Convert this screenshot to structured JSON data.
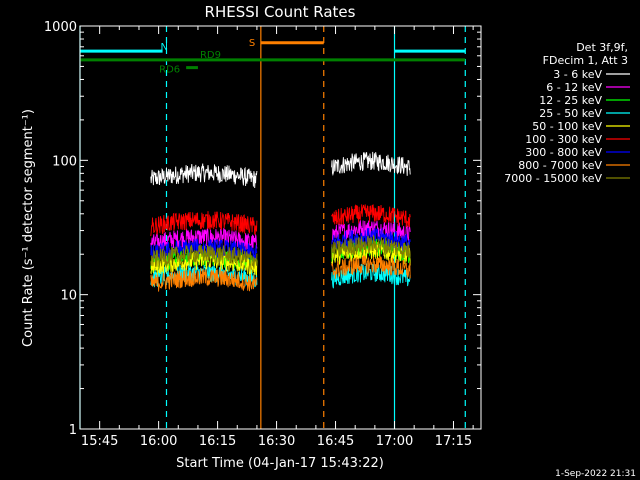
{
  "chart_data": {
    "type": "line",
    "title": "RHESSI Count Rates",
    "xlabel": "Start Time (04-Jan-17 15:43:22)",
    "ylabel": "Count Rate (s⁻¹ detector segment⁻¹)",
    "x_range": [
      "15:40",
      "17:22"
    ],
    "y_range": [
      1,
      1000
    ],
    "y_scale": "log",
    "x_ticks": [
      "15:45",
      "16:00",
      "16:15",
      "16:30",
      "16:45",
      "17:00",
      "17:15"
    ],
    "y_ticks": [
      1,
      10,
      100,
      1000
    ],
    "y_tick_labels": [
      "1",
      "10",
      "100",
      "1000"
    ],
    "legend_header": [
      "Det 3f,9f,",
      "FDecim 1, Att 3"
    ],
    "legend_position": "right",
    "intervals": [
      {
        "label": "",
        "color": "#00ffff",
        "y": 650,
        "start": "15:40",
        "end": "16:01"
      },
      {
        "label": "",
        "color": "#00ffff",
        "y": 650,
        "start": "17:00",
        "end": "17:18"
      },
      {
        "label": "N",
        "color": "#00ffff",
        "y": 650,
        "start": "16:02",
        "end": "16:02"
      },
      {
        "label": "",
        "color": "#008000",
        "y": 560,
        "start": "15:40",
        "end": "17:18"
      },
      {
        "label": "RD6",
        "color": "#008000",
        "y": 490,
        "start": "16:07",
        "end": "16:10"
      },
      {
        "label": "RD9",
        "color": "#008000",
        "y": 560,
        "start": "16:10",
        "end": "16:10"
      },
      {
        "label": "S",
        "color": "#ff8000",
        "y": 750,
        "start": "16:26",
        "end": "16:42"
      }
    ],
    "vertical_lines": [
      {
        "time": "15:40",
        "color": "#00ffff",
        "style": "solid"
      },
      {
        "time": "16:02",
        "color": "#00ffff",
        "style": "dashed"
      },
      {
        "time": "16:26",
        "color": "#ff8000",
        "style": "solid"
      },
      {
        "time": "16:42",
        "color": "#ff8000",
        "style": "dashed"
      },
      {
        "time": "17:00",
        "color": "#00ffff",
        "style": "solid"
      },
      {
        "time": "17:18",
        "color": "#00ffff",
        "style": "dashed"
      }
    ],
    "segments": [
      {
        "start": "15:58",
        "end": "16:25"
      },
      {
        "start": "16:44",
        "end": "17:04"
      }
    ],
    "series": [
      {
        "name": "3 - 6 keV",
        "color": "#ffffff",
        "levels": [
          72,
          88
        ]
      },
      {
        "name": "6 - 12 keV",
        "color": "#ff00ff",
        "levels": [
          24,
          28
        ]
      },
      {
        "name": "12 - 25 keV",
        "color": "#00ff00",
        "levels": [
          17,
          20
        ]
      },
      {
        "name": "25 - 50 keV",
        "color": "#00ffff",
        "levels": [
          13,
          13
        ]
      },
      {
        "name": "50 - 100 keV",
        "color": "#ffff00",
        "levels": [
          16,
          19
        ]
      },
      {
        "name": "100 - 300 keV",
        "color": "#ff0000",
        "levels": [
          32,
          36
        ]
      },
      {
        "name": "300 - 800 keV",
        "color": "#0000ff",
        "levels": [
          20,
          24
        ]
      },
      {
        "name": "800 - 7000 keV",
        "color": "#ff8000",
        "levels": [
          12,
          15
        ]
      },
      {
        "name": "7000 - 15000 keV",
        "color": "#808000",
        "levels": [
          18,
          21
        ]
      }
    ]
  },
  "footer": {
    "timestamp": "1-Sep-2022 21:31"
  }
}
